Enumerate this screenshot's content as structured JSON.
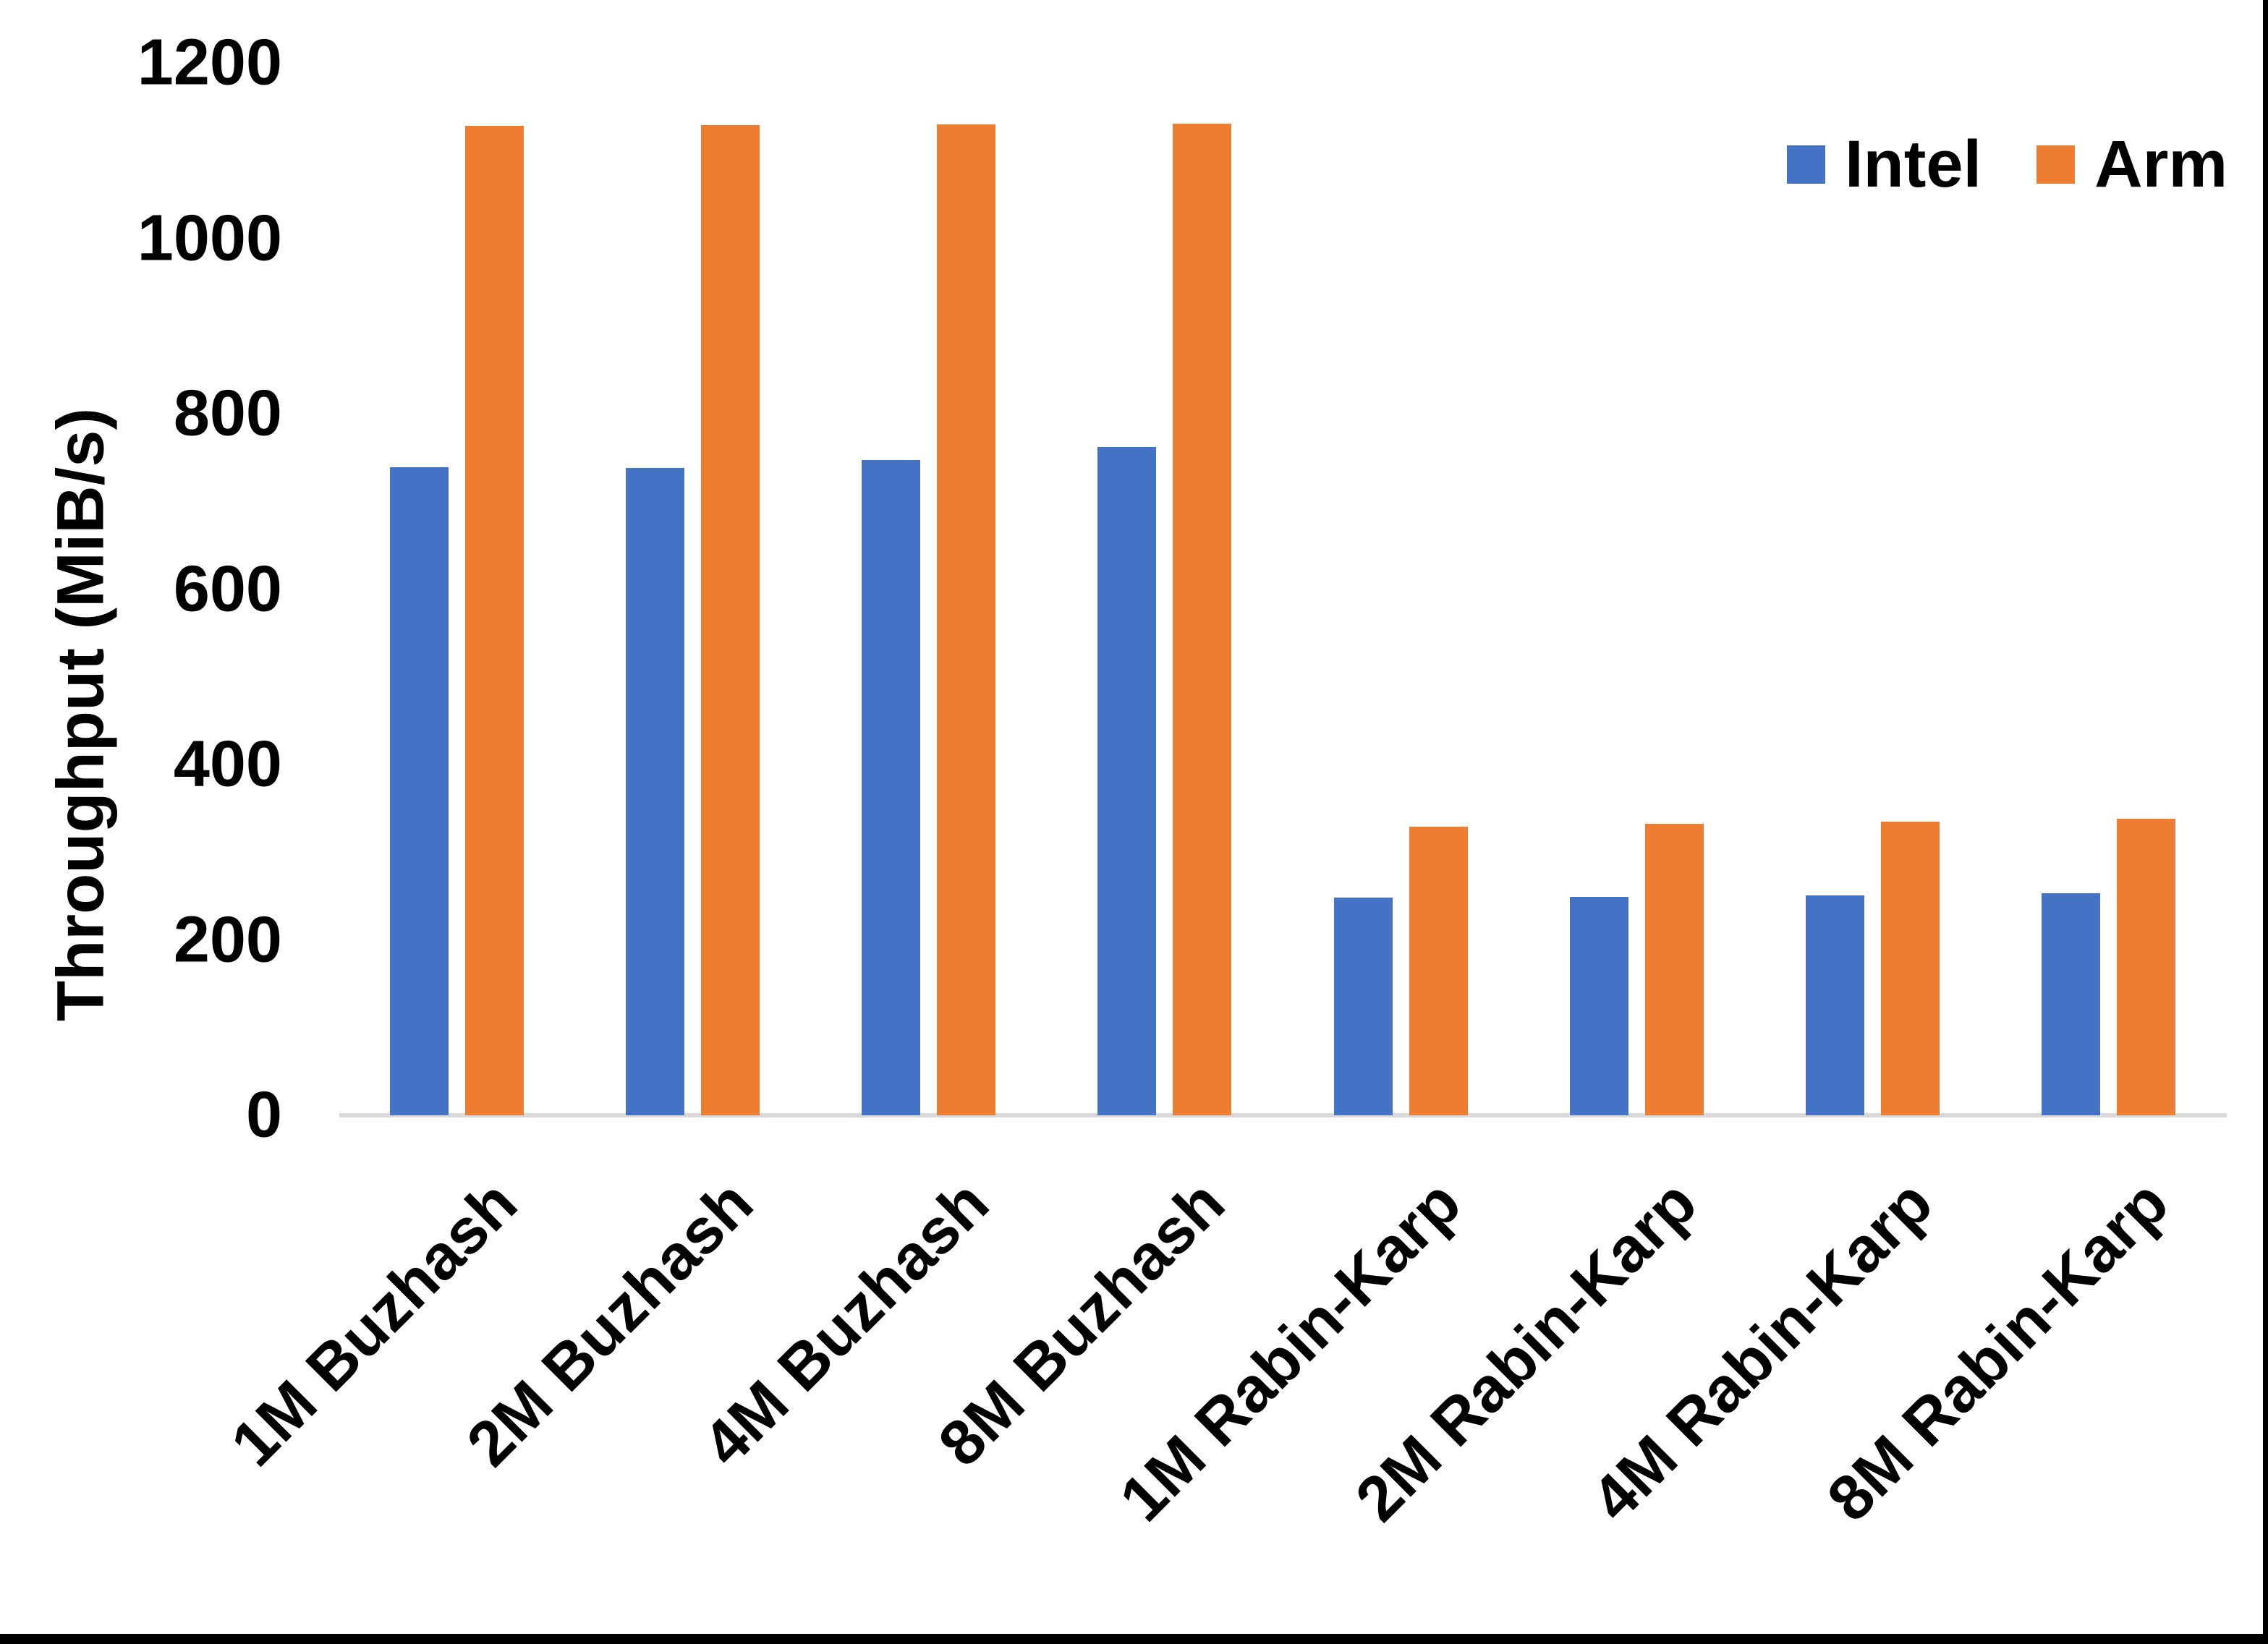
{
  "chart_data": {
    "type": "bar",
    "title": "",
    "xlabel": "",
    "ylabel": "Throughput (MiB/s)",
    "categories": [
      "1M Buzhash",
      "2M Buzhash",
      "4M Buzhash",
      "8M Buzhash",
      "1M Rabin-Karp",
      "2M Rabin-Karp",
      "4M Rabin-Karp",
      "8M Rabin-Karp"
    ],
    "series": [
      {
        "name": "Intel",
        "color": "#4472C4",
        "values": [
          739,
          738,
          747,
          762,
          248,
          249,
          251,
          253
        ]
      },
      {
        "name": "Arm",
        "color": "#ED7D31",
        "values": [
          1128,
          1129,
          1130,
          1131,
          329,
          332,
          335,
          338
        ]
      }
    ],
    "ylim": [
      0,
      1200
    ],
    "yticks": [
      0,
      200,
      400,
      600,
      800,
      1000,
      1200
    ],
    "grid": false,
    "legend_position": "top-right",
    "x_label_rotation_deg": 45
  },
  "colors": {
    "background": "#FFFFFF",
    "axis_line": "#D9D9D9",
    "text": "#000000",
    "frame_border": "#000000"
  }
}
